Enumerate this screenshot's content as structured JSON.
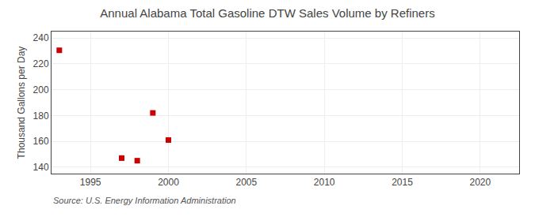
{
  "chart_data": {
    "type": "scatter",
    "title": "Annual Alabama Total Gasoline DTW Sales Volume by Refiners",
    "ylabel": "Thousand Gallons per Day",
    "annotations": [
      "Source: U.S. Energy Information Administration"
    ],
    "x": [
      1993,
      1997,
      1998,
      1999,
      2000
    ],
    "values": [
      230.5,
      147.0,
      145.0,
      182.0,
      161.0
    ],
    "color": "#cc0000",
    "marker": "square",
    "xlim": [
      1992.5,
      2022.5
    ],
    "ylim": [
      135,
      245
    ],
    "xticks": [
      1995,
      2000,
      2005,
      2010,
      2015,
      2020
    ],
    "yticks": [
      140,
      160,
      180,
      200,
      220,
      240
    ],
    "grid": true
  }
}
